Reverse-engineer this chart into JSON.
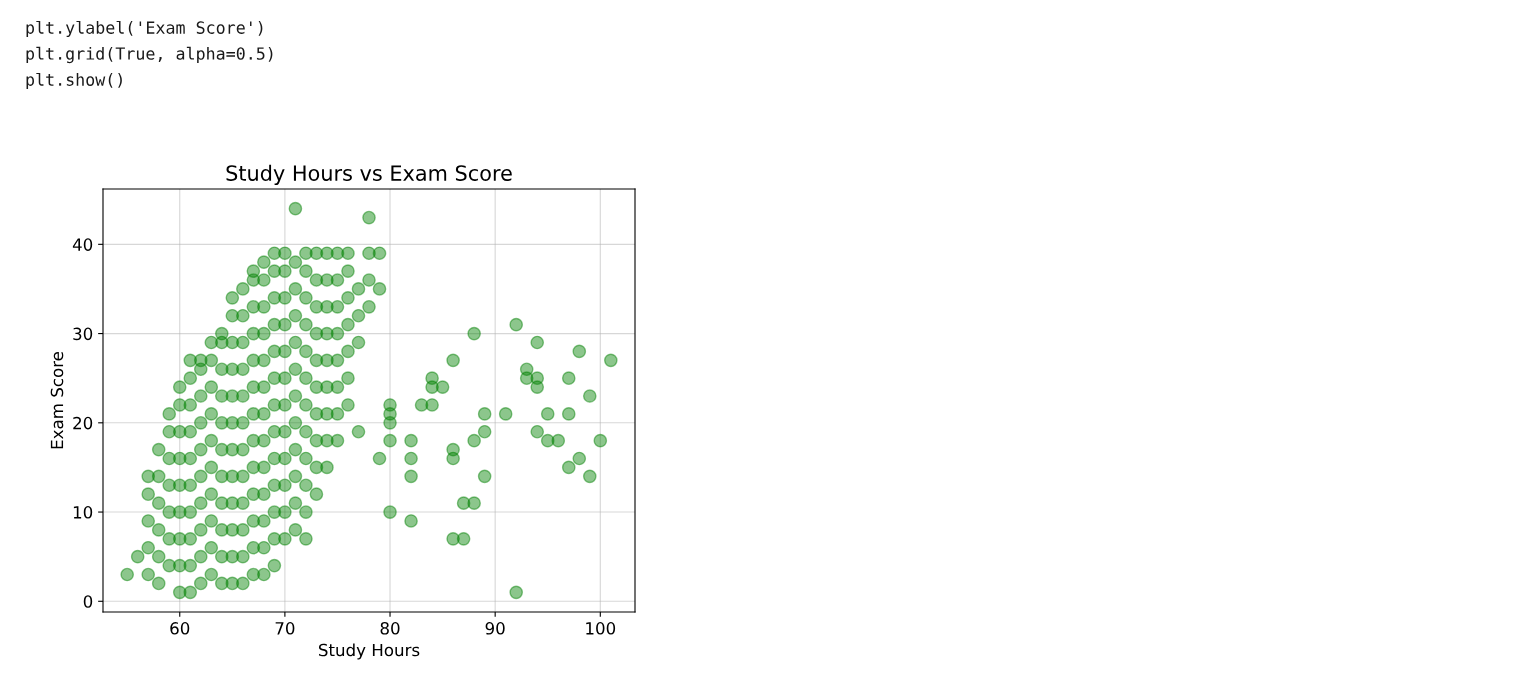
{
  "chart_data": {
    "type": "scatter",
    "title": "Study Hours vs Exam Score",
    "xlabel": "Study Hours",
    "ylabel": "Exam Score",
    "annotations": [
      "plt.ylabel('Exam Score')",
      "plt.grid(True, alpha=0.5)",
      "plt.show()"
    ],
    "xlim": [
      52.7,
      103.3
    ],
    "ylim": [
      -1.2,
      46.2
    ],
    "xticks": [
      60,
      70,
      80,
      90,
      100
    ],
    "yticks": [
      0,
      10,
      20,
      30,
      40
    ],
    "grid": true,
    "marker": "circle",
    "series": [
      {
        "color": "#008000",
        "x": [
          55,
          56,
          57,
          57,
          57,
          57,
          57,
          58,
          58,
          58,
          58,
          58,
          58,
          59,
          59,
          59,
          59,
          59,
          59,
          59,
          60,
          60,
          60,
          60,
          60,
          60,
          60,
          60,
          60,
          61,
          61,
          61,
          61,
          61,
          61,
          61,
          61,
          61,
          61,
          62,
          62,
          62,
          62,
          62,
          62,
          62,
          62,
          62,
          62,
          63,
          63,
          63,
          63,
          63,
          63,
          63,
          63,
          63,
          63,
          64,
          64,
          64,
          64,
          64,
          64,
          64,
          64,
          64,
          64,
          64,
          65,
          65,
          65,
          65,
          65,
          65,
          65,
          65,
          65,
          65,
          65,
          65,
          66,
          66,
          66,
          66,
          66,
          66,
          66,
          66,
          66,
          66,
          66,
          66,
          67,
          67,
          67,
          67,
          67,
          67,
          67,
          67,
          67,
          67,
          67,
          67,
          67,
          68,
          68,
          68,
          68,
          68,
          68,
          68,
          68,
          68,
          68,
          68,
          68,
          68,
          69,
          69,
          69,
          69,
          69,
          69,
          69,
          69,
          69,
          69,
          69,
          69,
          69,
          70,
          70,
          70,
          70,
          70,
          70,
          70,
          70,
          70,
          70,
          70,
          70,
          71,
          71,
          71,
          71,
          71,
          71,
          71,
          71,
          71,
          71,
          71,
          71,
          72,
          72,
          72,
          72,
          72,
          72,
          72,
          72,
          72,
          72,
          72,
          72,
          73,
          73,
          73,
          73,
          73,
          73,
          73,
          73,
          73,
          73,
          74,
          74,
          74,
          74,
          74,
          74,
          74,
          74,
          74,
          75,
          75,
          75,
          75,
          75,
          75,
          75,
          75,
          76,
          76,
          76,
          76,
          76,
          76,
          76,
          77,
          77,
          77,
          77,
          78,
          78,
          78,
          78,
          79,
          79,
          79,
          80,
          80,
          80,
          80,
          80,
          82,
          82,
          82,
          82,
          83,
          84,
          84,
          85,
          84,
          86,
          86,
          86,
          86,
          87,
          87,
          88,
          88,
          88,
          89,
          89,
          89,
          91,
          92,
          92,
          93,
          93,
          94,
          94,
          94,
          94,
          95,
          95,
          96,
          97,
          97,
          97,
          98,
          98,
          99,
          99,
          100,
          101
        ],
        "values": [
          3,
          5,
          3,
          6,
          9,
          12,
          14,
          2,
          5,
          8,
          11,
          14,
          17,
          4,
          7,
          10,
          13,
          16,
          19,
          21,
          1,
          4,
          7,
          10,
          13,
          16,
          19,
          22,
          24,
          1,
          4,
          7,
          10,
          13,
          16,
          19,
          22,
          25,
          27,
          2,
          5,
          8,
          11,
          14,
          17,
          20,
          23,
          26,
          27,
          3,
          6,
          9,
          12,
          15,
          18,
          21,
          24,
          27,
          29,
          2,
          5,
          8,
          11,
          14,
          17,
          20,
          23,
          26,
          29,
          30,
          2,
          5,
          8,
          11,
          14,
          17,
          20,
          23,
          26,
          29,
          32,
          34,
          2,
          5,
          8,
          11,
          14,
          17,
          20,
          23,
          26,
          29,
          32,
          35,
          3,
          6,
          9,
          12,
          15,
          18,
          21,
          24,
          27,
          30,
          33,
          36,
          37,
          3,
          6,
          9,
          12,
          15,
          18,
          21,
          24,
          27,
          30,
          33,
          36,
          38,
          4,
          7,
          10,
          13,
          16,
          19,
          22,
          25,
          28,
          31,
          34,
          37,
          39,
          7,
          10,
          13,
          16,
          19,
          22,
          25,
          28,
          31,
          34,
          37,
          39,
          8,
          11,
          14,
          17,
          20,
          23,
          26,
          29,
          32,
          35,
          38,
          44,
          7,
          10,
          13,
          16,
          19,
          22,
          25,
          28,
          31,
          34,
          37,
          39,
          12,
          15,
          18,
          21,
          24,
          27,
          30,
          33,
          36,
          39,
          15,
          18,
          21,
          24,
          27,
          30,
          33,
          36,
          39,
          18,
          21,
          24,
          27,
          30,
          33,
          36,
          39,
          22,
          25,
          28,
          31,
          34,
          37,
          39,
          29,
          32,
          35,
          19,
          33,
          36,
          39,
          43,
          35,
          39,
          16,
          22,
          21,
          20,
          18,
          10,
          18,
          16,
          14,
          9,
          22,
          25,
          24,
          24,
          22,
          27,
          17,
          16,
          7,
          7,
          11,
          11,
          18,
          30,
          21,
          19,
          14,
          21,
          31,
          1,
          26,
          25,
          29,
          25,
          24,
          19,
          21,
          18,
          18,
          25,
          21,
          15,
          28,
          16,
          23,
          14,
          18,
          27
        ]
      }
    ]
  }
}
